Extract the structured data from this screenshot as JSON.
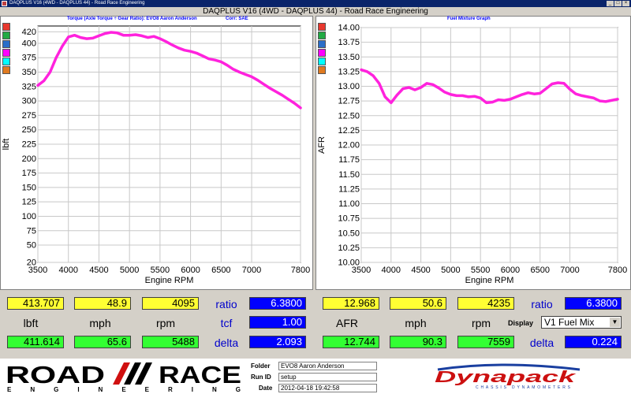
{
  "window": {
    "title": "DAQPLUS V16 (4WD - DAQPLUS 44) - Road Race Engineering"
  },
  "main_title": "DAQPLUS V16 (4WD - DAQPLUS 44) - Road Race Engineering",
  "torque_chart": {
    "subtitle": "Torque (Axle Torque ÷ Gear Ratio): EVO8 Aaron Anderson",
    "corr": "Corr: SAE",
    "swatch_colors": [
      "#e8382e",
      "#22aa44",
      "#2a6ec8",
      "#ff00ff",
      "#00ffff",
      "#e07a20"
    ]
  },
  "afr_chart": {
    "subtitle": "Fuel Mixture Graph",
    "swatch_colors": [
      "#e8382e",
      "#22aa44",
      "#2a6ec8",
      "#ff00ff",
      "#00ffff",
      "#e07a20"
    ]
  },
  "chart_data": [
    {
      "type": "line",
      "title": "Torque (Axle Torque ÷ Gear Ratio): EVO8 Aaron Anderson",
      "xlabel": "Engine RPM",
      "ylabel": "lbft",
      "xlim": [
        3500,
        7800
      ],
      "ylim": [
        20,
        430
      ],
      "x_ticks": [
        "3500",
        "4000",
        "4500",
        "5000",
        "5500",
        "6000",
        "6500",
        "7000",
        "7800"
      ],
      "y_ticks": [
        "20",
        "50",
        "75",
        "100",
        "125",
        "150",
        "175",
        "200",
        "225",
        "250",
        "275",
        "300",
        "325",
        "350",
        "375",
        "400",
        "420"
      ],
      "grid": true,
      "series": [
        {
          "color": "#ff22dd",
          "x": [
            3500,
            3600,
            3700,
            3800,
            3900,
            4000,
            4100,
            4200,
            4300,
            4400,
            4500,
            4600,
            4700,
            4800,
            4900,
            5000,
            5100,
            5200,
            5300,
            5400,
            5500,
            5600,
            5700,
            5800,
            5900,
            6000,
            6100,
            6200,
            6300,
            6400,
            6500,
            6600,
            6700,
            6800,
            6900,
            7000,
            7100,
            7200,
            7300,
            7400,
            7500,
            7600,
            7700,
            7800
          ],
          "y": [
            327,
            335,
            350,
            375,
            395,
            411,
            414,
            410,
            408,
            409,
            413,
            417,
            419,
            418,
            414,
            414,
            415,
            413,
            410,
            412,
            408,
            403,
            397,
            392,
            388,
            386,
            383,
            378,
            373,
            371,
            368,
            362,
            355,
            350,
            346,
            342,
            336,
            329,
            322,
            316,
            310,
            303,
            296,
            288
          ]
        }
      ]
    },
    {
      "type": "line",
      "title": "Fuel Mixture Graph",
      "xlabel": "Engine RPM",
      "ylabel": "AFR",
      "xlim": [
        3500,
        7800
      ],
      "ylim": [
        10.0,
        14.0
      ],
      "x_ticks": [
        "3500",
        "4000",
        "4500",
        "5000",
        "5500",
        "6000",
        "6500",
        "7000",
        "7800"
      ],
      "y_ticks": [
        "10.00",
        "10.25",
        "10.50",
        "10.75",
        "11.00",
        "11.25",
        "11.50",
        "11.75",
        "12.00",
        "12.25",
        "12.50",
        "12.75",
        "13.00",
        "13.25",
        "13.50",
        "13.75",
        "14.00"
      ],
      "grid": true,
      "series": [
        {
          "color": "#ff22dd",
          "x": [
            3500,
            3600,
            3700,
            3800,
            3900,
            4000,
            4100,
            4200,
            4300,
            4400,
            4500,
            4600,
            4700,
            4800,
            4900,
            5000,
            5100,
            5200,
            5300,
            5400,
            5500,
            5600,
            5700,
            5800,
            5900,
            6000,
            6100,
            6200,
            6300,
            6400,
            6500,
            6600,
            6700,
            6800,
            6900,
            7000,
            7100,
            7200,
            7300,
            7400,
            7500,
            7600,
            7700,
            7800
          ],
          "y": [
            13.28,
            13.25,
            13.18,
            13.05,
            12.82,
            12.72,
            12.85,
            12.96,
            12.98,
            12.94,
            12.98,
            13.05,
            13.03,
            12.97,
            12.9,
            12.86,
            12.84,
            12.84,
            12.82,
            12.83,
            12.8,
            12.72,
            12.73,
            12.77,
            12.76,
            12.78,
            12.82,
            12.86,
            12.89,
            12.87,
            12.88,
            12.96,
            13.04,
            13.06,
            13.05,
            12.95,
            12.87,
            12.84,
            12.82,
            12.8,
            12.75,
            12.74,
            12.76,
            12.78
          ]
        }
      ]
    }
  ],
  "left_readout": {
    "top_values": [
      "413.707",
      "48.9",
      "4095"
    ],
    "labels": [
      "lbft",
      "mph",
      "rpm"
    ],
    "bottom_values": [
      "411.614",
      "65.6",
      "5488"
    ],
    "ratio_label": "ratio",
    "ratio_value": "6.3800",
    "tcf_label": "tcf",
    "tcf_value": "1.00",
    "delta_label": "delta",
    "delta_value": "2.093"
  },
  "right_readout": {
    "top_values": [
      "12.968",
      "50.6",
      "4235"
    ],
    "labels": [
      "AFR",
      "mph",
      "rpm"
    ],
    "bottom_values": [
      "12.744",
      "90.3",
      "7559"
    ],
    "ratio_label": "ratio",
    "ratio_value": "6.3800",
    "display_label": "Display",
    "display_value": "V1 Fuel Mix",
    "delta_label": "delta",
    "delta_value": "0.224"
  },
  "info": {
    "folder_label": "Folder",
    "folder_value": "EVO8 Aaron Anderson",
    "runid_label": "Run ID",
    "runid_value": "setup",
    "date_label": "Date",
    "date_value": "2012-04-18 19:42:58"
  },
  "logos": {
    "road_race_top": "ROAD",
    "road_race_top2": "RACE",
    "road_race_bottom": "E N G I N E E R I N G",
    "dynapack": "Dynapack",
    "dynapack_sub": "CHASSIS DYNAMOMETERS"
  },
  "colors": {
    "trace": "#ff22dd",
    "field_yellow": "#ffff33",
    "field_green": "#33ff33",
    "field_blue": "#0000ff",
    "titlebar": "#0a246a"
  }
}
